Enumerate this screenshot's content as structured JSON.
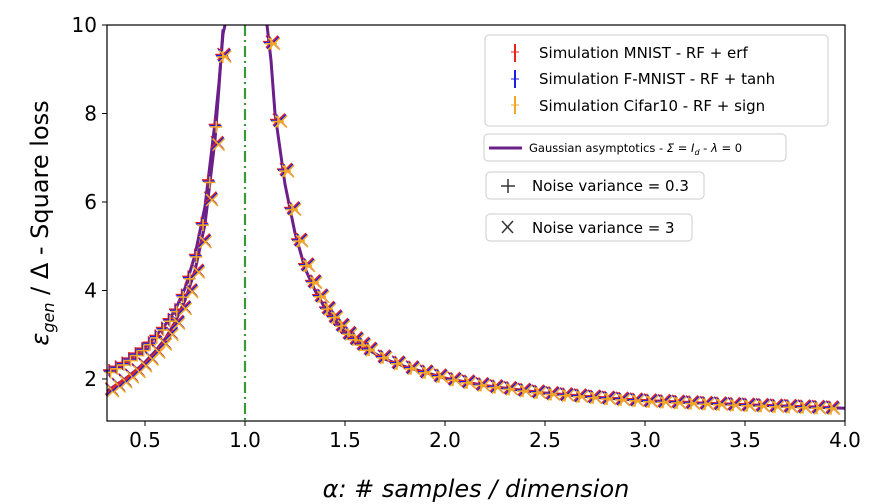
{
  "chart_data": {
    "type": "line",
    "xlabel": "α: # samples / dimension",
    "ylabel": "εgen / Δ - Square loss",
    "xlim": [
      0.31,
      4.0
    ],
    "ylim": [
      1.05,
      10.0
    ],
    "xticks": [
      "0.5",
      "1.0",
      "1.5",
      "2.0",
      "2.5",
      "3.0",
      "3.5",
      "4.0"
    ],
    "yticks": [
      "2",
      "4",
      "6",
      "8",
      "10"
    ],
    "xtick_values": [
      0.5,
      1.0,
      1.5,
      2.0,
      2.5,
      3.0,
      3.5,
      4.0
    ],
    "ytick_values": [
      2,
      4,
      6,
      8,
      10
    ],
    "vertical_line": {
      "x": 1.0,
      "style": "dash-dot",
      "color": "#2ca02c"
    },
    "theory_curve": {
      "name": "Gaussian asymptotics - Σ = I_d - λ = 0",
      "color": "#6a1f8a",
      "curves": [
        {
          "noise_variance": 0.3,
          "x": [
            0.31,
            0.35,
            0.4,
            0.45,
            0.5,
            0.55,
            0.6,
            0.65,
            0.7,
            0.75,
            0.8,
            0.85,
            0.87,
            0.89,
            0.9
          ],
          "y": [
            2.15,
            2.25,
            2.38,
            2.55,
            2.72,
            2.95,
            3.22,
            3.55,
            4.05,
            4.8,
            5.9,
            7.8,
            8.7,
            9.8,
            10.0
          ]
        },
        {
          "noise_variance": 3,
          "x": [
            0.31,
            0.35,
            0.4,
            0.45,
            0.5,
            0.55,
            0.6,
            0.65,
            0.7,
            0.75,
            0.8,
            0.85,
            0.87,
            0.89
          ],
          "y": [
            1.72,
            1.85,
            2.0,
            2.18,
            2.38,
            2.62,
            2.9,
            3.28,
            3.78,
            4.45,
            5.5,
            7.4,
            8.6,
            9.9
          ]
        },
        {
          "noise_variance": "both",
          "x": [
            1.11,
            1.13,
            1.15,
            1.2,
            1.25,
            1.3,
            1.35,
            1.4,
            1.5,
            1.6,
            1.7,
            1.8,
            2.0,
            2.2,
            2.5,
            2.8,
            3.0,
            3.3,
            3.6,
            4.0
          ],
          "y": [
            10.0,
            9.2,
            8.0,
            6.4,
            5.3,
            4.5,
            4.0,
            3.6,
            3.05,
            2.7,
            2.45,
            2.28,
            2.02,
            1.85,
            1.68,
            1.57,
            1.51,
            1.45,
            1.4,
            1.34
          ]
        }
      ]
    },
    "series": [
      {
        "name": "Simulation MNIST - RF + erf",
        "color": "#e8261c"
      },
      {
        "name": "Simulation F-MNIST - RF + tanh",
        "color": "#1c1ce8"
      },
      {
        "name": "Simulation Cifar10 - RF + sign",
        "color": "#f5a623"
      }
    ],
    "markers": [
      {
        "name": "Noise variance = 0.3",
        "symbol": "+"
      },
      {
        "name": "Noise variance = 3",
        "symbol": "x"
      }
    ],
    "legend_placement": "top-right",
    "grid": false
  }
}
